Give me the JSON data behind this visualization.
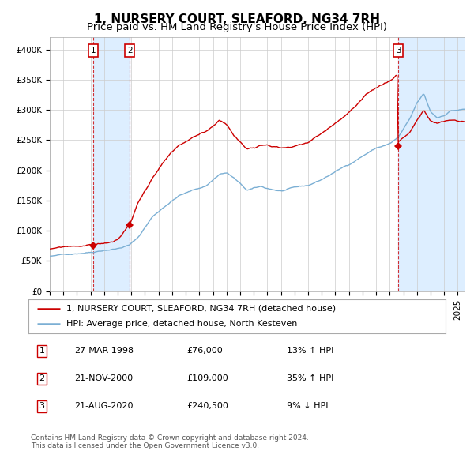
{
  "title": "1, NURSERY COURT, SLEAFORD, NG34 7RH",
  "subtitle": "Price paid vs. HM Land Registry's House Price Index (HPI)",
  "ylim": [
    0,
    420000
  ],
  "yticks": [
    0,
    50000,
    100000,
    150000,
    200000,
    250000,
    300000,
    350000,
    400000
  ],
  "ytick_labels": [
    "£0",
    "£50K",
    "£100K",
    "£150K",
    "£200K",
    "£250K",
    "£300K",
    "£350K",
    "£400K"
  ],
  "red_color": "#cc0000",
  "blue_color": "#7bafd4",
  "bg_color": "#ffffff",
  "grid_color": "#cccccc",
  "shade_color": "#ddeeff",
  "transaction_prices": [
    76000,
    109000,
    240500
  ],
  "transaction_labels": [
    "1",
    "2",
    "3"
  ],
  "legend_red": "1, NURSERY COURT, SLEAFORD, NG34 7RH (detached house)",
  "legend_blue": "HPI: Average price, detached house, North Kesteven",
  "table_rows": [
    [
      "1",
      "27-MAR-1998",
      "£76,000",
      "13% ↑ HPI"
    ],
    [
      "2",
      "21-NOV-2000",
      "£109,000",
      "35% ↑ HPI"
    ],
    [
      "3",
      "21-AUG-2020",
      "£240,500",
      "9% ↓ HPI"
    ]
  ],
  "footnote": "Contains HM Land Registry data © Crown copyright and database right 2024.\nThis data is licensed under the Open Government Licence v3.0.",
  "title_fontsize": 11,
  "subtitle_fontsize": 9.5,
  "tick_fontsize": 7.5,
  "legend_fontsize": 8,
  "table_fontsize": 8,
  "footnote_fontsize": 6.5
}
